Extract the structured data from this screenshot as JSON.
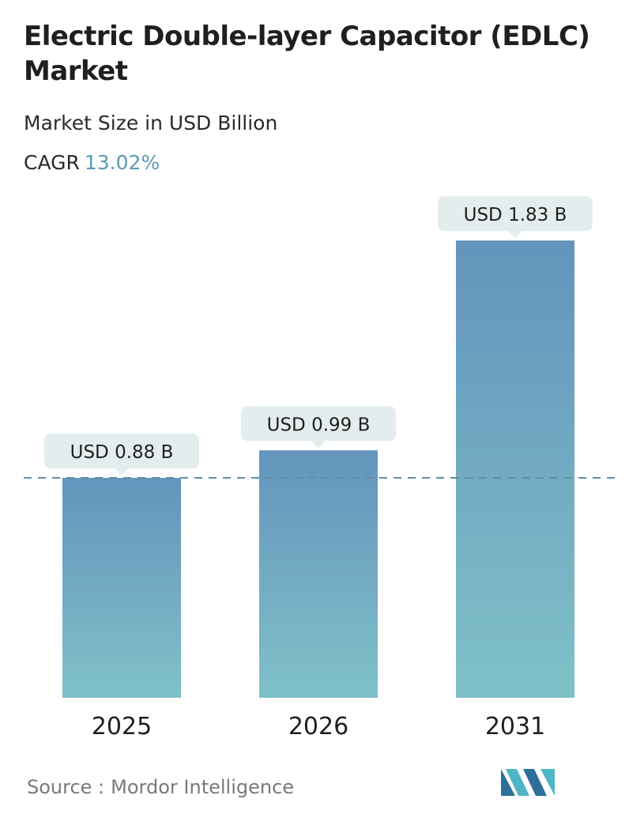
{
  "header": {
    "title": "Electric Double-layer Capacitor (EDLC) Market",
    "subtitle": "Market Size in USD Billion",
    "cagr_label": "CAGR",
    "cagr_value": "13.02%"
  },
  "chart_data": {
    "type": "bar",
    "categories": [
      "2025",
      "2026",
      "2031"
    ],
    "values": [
      0.88,
      0.99,
      1.83
    ],
    "data_labels": [
      "USD 0.88 B",
      "USD 0.99 B",
      "USD 1.83 B"
    ],
    "ylim": [
      0,
      1.83
    ],
    "grid": false,
    "legend": "none",
    "reference_line": {
      "value": 0.88,
      "style": "dashed"
    },
    "colors": {
      "bar_top": "#6494bc",
      "bar_bottom": "#7fc1c8",
      "label_bg": "#e4eded",
      "reference_line": "#5d8fa6"
    }
  },
  "footer": {
    "source_label": "Source :",
    "source_name": "Mordor Intelligence",
    "logo_icon": "mordor-intelligence-logo-icon"
  }
}
